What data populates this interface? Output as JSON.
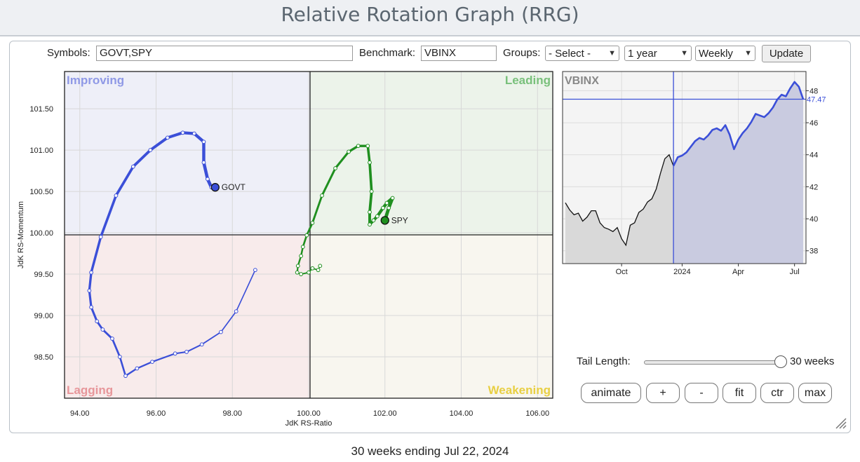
{
  "header": {
    "title": "Relative Rotation Graph (RRG)"
  },
  "controls": {
    "symbols_label": "Symbols:",
    "symbols_value": "GOVT,SPY",
    "benchmark_label": "Benchmark:",
    "benchmark_value": "VBINX",
    "groups_label": "Groups:",
    "groups_value": "- Select -",
    "period_value": "1 year",
    "frequency_value": "Weekly",
    "update_label": "Update"
  },
  "rrg": {
    "quadrants": {
      "improving": "Improving",
      "leading": "Leading",
      "lagging": "Lagging",
      "weakening": "Weakening"
    },
    "x_axis_label": "JdK RS-Ratio",
    "y_axis_label": "JdK RS-Momentum",
    "x_ticks": [
      "94.00",
      "96.00",
      "98.00",
      "100.00",
      "102.00",
      "104.00",
      "106.00"
    ],
    "y_ticks": [
      "98.50",
      "99.00",
      "99.50",
      "100.00",
      "100.50",
      "101.00",
      "101.50"
    ],
    "colors": {
      "govt": "#3b4fd8",
      "spy": "#1f8f1f"
    },
    "series": [
      {
        "name": "GOVT",
        "points": [
          [
            98.6,
            99.55
          ],
          [
            98.1,
            99.05
          ],
          [
            97.7,
            98.8
          ],
          [
            97.2,
            98.65
          ],
          [
            96.8,
            98.56
          ],
          [
            96.5,
            98.54
          ],
          [
            95.9,
            98.44
          ],
          [
            95.5,
            98.36
          ],
          [
            95.2,
            98.27
          ],
          [
            95.05,
            98.5
          ],
          [
            94.85,
            98.72
          ],
          [
            94.6,
            98.83
          ],
          [
            94.45,
            98.93
          ],
          [
            94.3,
            99.1
          ],
          [
            94.25,
            99.3
          ],
          [
            94.3,
            99.52
          ],
          [
            94.55,
            99.95
          ],
          [
            94.95,
            100.45
          ],
          [
            95.4,
            100.8
          ],
          [
            95.85,
            101.0
          ],
          [
            96.3,
            101.15
          ],
          [
            96.7,
            101.21
          ],
          [
            97.0,
            101.2
          ],
          [
            97.25,
            101.1
          ],
          [
            97.25,
            100.85
          ],
          [
            97.35,
            100.65
          ],
          [
            97.45,
            100.55
          ],
          [
            97.55,
            100.55
          ]
        ],
        "last": [
          97.55,
          100.55
        ]
      },
      {
        "name": "SPY",
        "points": [
          [
            100.3,
            99.6
          ],
          [
            100.25,
            99.55
          ],
          [
            100.1,
            99.57
          ],
          [
            100.0,
            99.52
          ],
          [
            99.8,
            99.5
          ],
          [
            99.7,
            99.52
          ],
          [
            99.72,
            99.6
          ],
          [
            99.8,
            99.72
          ],
          [
            99.85,
            99.83
          ],
          [
            99.95,
            99.97
          ],
          [
            100.1,
            100.12
          ],
          [
            100.35,
            100.45
          ],
          [
            100.7,
            100.78
          ],
          [
            101.05,
            100.98
          ],
          [
            101.3,
            101.05
          ],
          [
            101.55,
            101.05
          ],
          [
            101.6,
            100.85
          ],
          [
            101.65,
            100.5
          ],
          [
            101.6,
            100.25
          ],
          [
            101.6,
            100.1
          ],
          [
            101.7,
            100.15
          ],
          [
            101.8,
            100.2
          ],
          [
            101.95,
            100.3
          ],
          [
            102.05,
            100.36
          ],
          [
            102.2,
            100.42
          ],
          [
            102.1,
            100.3
          ],
          [
            102.0,
            100.15
          ]
        ],
        "last": [
          102.0,
          100.15
        ]
      }
    ]
  },
  "mini_chart": {
    "title": "VBINX",
    "current_value": "47.47",
    "y_ticks": [
      "38",
      "40",
      "42",
      "44",
      "46",
      "48"
    ],
    "x_ticks": [
      "Oct",
      "2024",
      "Apr",
      "Jul"
    ],
    "values": [
      41.0,
      40.55,
      40.25,
      40.35,
      39.85,
      40.1,
      40.5,
      40.5,
      39.75,
      39.45,
      39.35,
      39.2,
      39.45,
      38.75,
      38.35,
      39.6,
      39.75,
      40.4,
      40.6,
      41.05,
      41.25,
      41.85,
      42.85,
      43.75,
      44.0,
      43.3,
      43.85,
      43.95,
      44.15,
      44.5,
      44.85,
      45.05,
      44.95,
      45.2,
      45.55,
      45.65,
      45.5,
      45.85,
      45.25,
      44.35,
      44.95,
      45.35,
      45.65,
      46.05,
      46.55,
      46.45,
      46.35,
      46.6,
      46.95,
      47.45,
      47.75,
      47.65,
      48.15,
      48.55,
      48.25,
      47.47
    ],
    "highlight_start_index": 25
  },
  "tail": {
    "label": "Tail Length:",
    "value": "30 weeks"
  },
  "buttons": {
    "animate": "animate",
    "plus": "+",
    "minus": "-",
    "fit": "fit",
    "ctr": "ctr",
    "max": "max"
  },
  "footer": {
    "text": "30 weeks ending Jul 22, 2024"
  }
}
